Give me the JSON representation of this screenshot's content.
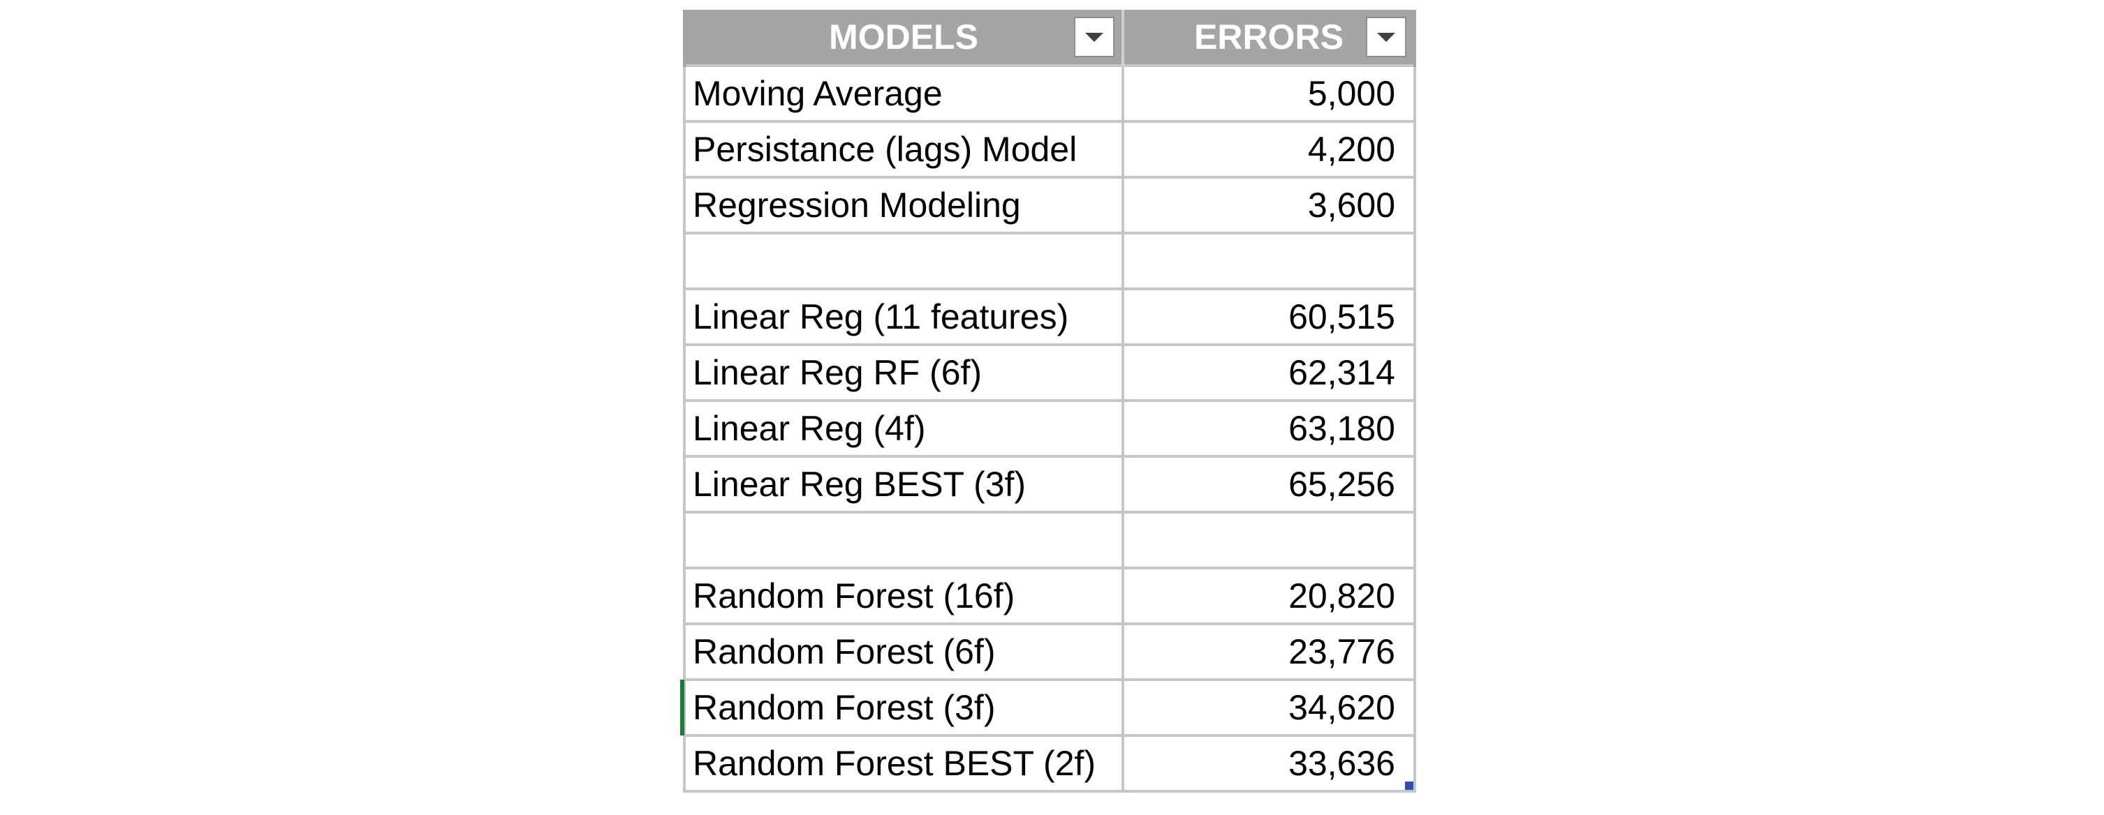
{
  "table": {
    "headers": {
      "model": "MODELS",
      "error": "ERRORS"
    },
    "rows": [
      {
        "model": "Moving Average",
        "error": "5,000"
      },
      {
        "model": "Persistance (lags) Model",
        "error": "4,200"
      },
      {
        "model": "Regression Modeling",
        "error": "3,600"
      },
      {
        "model": "",
        "error": ""
      },
      {
        "model": "Linear Reg (11 features)",
        "error": "60,515"
      },
      {
        "model": "Linear Reg RF (6f)",
        "error": "62,314"
      },
      {
        "model": "Linear Reg (4f)",
        "error": "63,180"
      },
      {
        "model": "Linear Reg BEST (3f)",
        "error": "65,256"
      },
      {
        "model": "",
        "error": ""
      },
      {
        "model": "Random Forest (16f)",
        "error": "20,820"
      },
      {
        "model": "Random Forest (6f)",
        "error": "23,776"
      },
      {
        "model": "Random Forest (3f)",
        "error": "34,620"
      },
      {
        "model": "Random Forest BEST (2f)",
        "error": "33,636"
      }
    ]
  },
  "colors": {
    "header_bg": "#a5a5a5",
    "header_text": "#ffffff",
    "grid_line": "#c6c6c6",
    "fill_handle": "#2f4fb4"
  },
  "icons": {
    "filter": "chevron-down-icon"
  }
}
